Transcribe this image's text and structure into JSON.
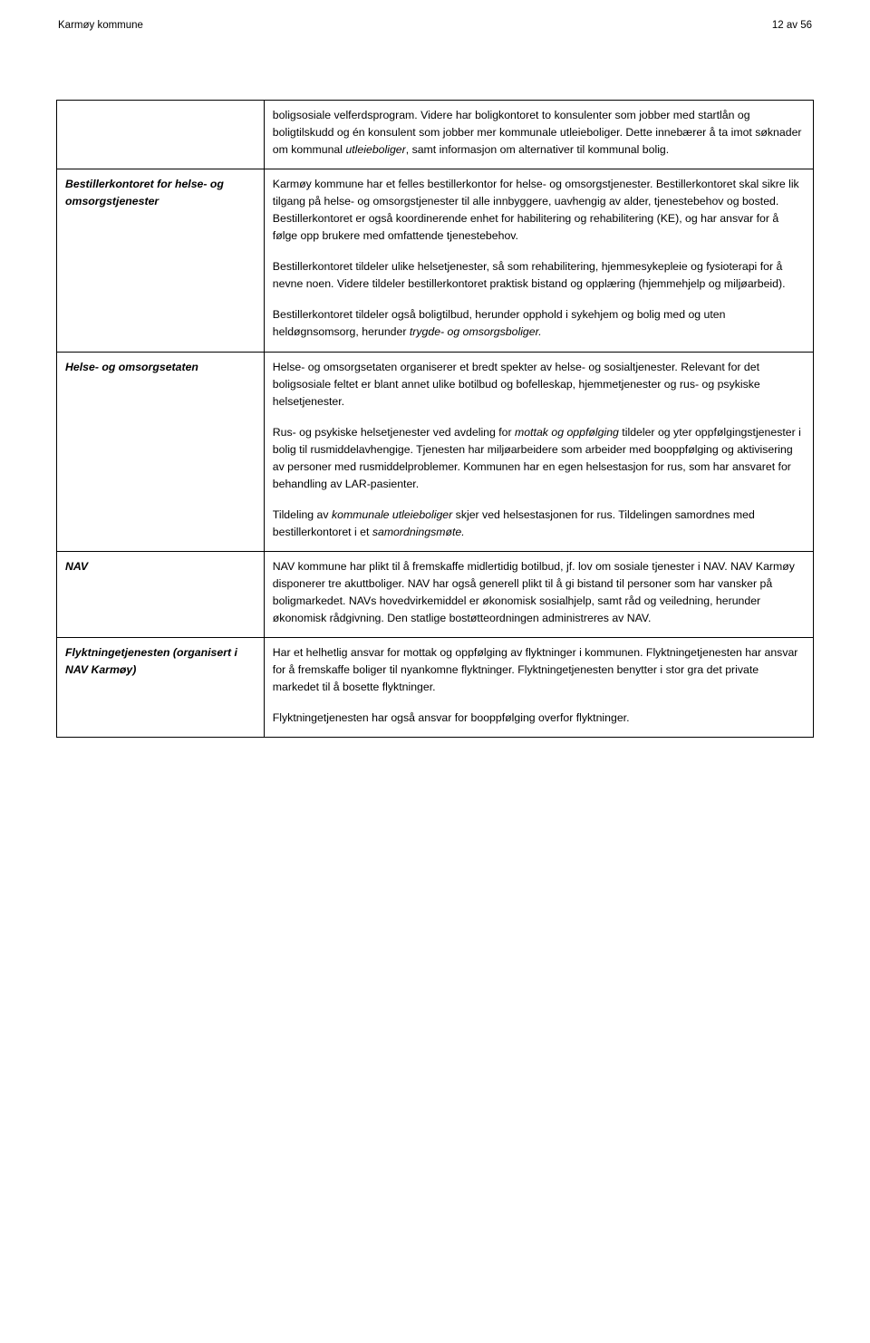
{
  "header": {
    "left": "Karmøy kommune",
    "right": "12 av 56"
  },
  "rows": [
    {
      "label": "",
      "paras": [
        {
          "html": "boligsosiale velferdsprogram. Videre har boligkontoret to konsulenter som jobber med startlån og boligtilskudd og én konsulent som jobber mer kommunale utleieboliger. Dette innebærer å ta imot søknader om kommunal <em class='soft'>utleieboliger</em>, samt informasjon om alternativer til kommunal bolig."
        }
      ]
    },
    {
      "label": "Bestillerkontoret for helse- og omsorgstjenester",
      "paras": [
        {
          "html": "Karmøy kommune har et felles bestillerkontor for helse- og omsorgstjenester. Bestillerkontoret skal sikre lik tilgang på helse- og omsorgstjenester til alle innbyggere, uavhengig av alder, tjenestebehov og bosted. Bestillerkontoret er også koordinerende enhet for habilitering og rehabilitering (KE), og har ansvar for å følge opp brukere med omfattende tjenestebehov."
        },
        {
          "html": "Bestillerkontoret tildeler ulike helsetjenester, så som rehabilitering, hjemmesykepleie og fysioterapi for å nevne noen. Videre tildeler bestillerkontoret praktisk bistand og opplæring (hjemmehjelp og miljøarbeid)."
        },
        {
          "html": "Bestillerkontoret tildeler også boligtilbud, herunder opphold i sykehjem og bolig med og uten heldøgnsomsorg, herunder <em class='soft'>trygde- og omsorgsboliger.</em>"
        }
      ]
    },
    {
      "label": "Helse- og omsorgsetaten",
      "paras": [
        {
          "html": "Helse- og omsorgsetaten organiserer et bredt spekter av helse- og sosialtjenester. Relevant for det boligsosiale feltet er blant annet ulike botilbud og bofelleskap, hjemmetjenester og rus- og psykiske helsetjenester."
        },
        {
          "html": "Rus- og psykiske helsetjenester ved avdeling for <em class='soft'>mottak og oppfølging</em> tildeler og yter oppfølgingstjenester i bolig til rusmiddelavhengige. Tjenesten har miljøarbeidere som arbeider med booppfølging og aktivisering av personer med rusmiddelproblemer. Kommunen har en egen helsestasjon for rus, som har ansvaret for behandling av LAR-pasienter."
        },
        {
          "html": "Tildeling av <em class='soft'>kommunale utleieboliger</em> skjer ved helsestasjonen for rus. Tildelingen samordnes med bestillerkontoret i et <em class='soft'>samordningsmøte.</em>"
        }
      ]
    },
    {
      "label": "NAV",
      "paras": [
        {
          "html": "NAV kommune har plikt til å fremskaffe midlertidig botilbud, jf. lov om sosiale tjenester i NAV. NAV Karmøy disponerer tre akuttboliger. NAV har også generell plikt til å gi bistand til personer som har vansker på boligmarkedet. NAVs hovedvirkemiddel er økonomisk sosialhjelp, samt råd og veiledning, herunder økonomisk rådgivning. Den statlige bostøtteordningen administreres av NAV."
        }
      ]
    },
    {
      "label": "Flyktningetjenesten (organisert i NAV Karmøy)",
      "paras": [
        {
          "html": "Har et helhetlig ansvar for mottak og oppfølging av flyktninger i kommunen. Flyktningetjenesten har ansvar for å fremskaffe boliger til nyankomne flyktninger. Flyktningetjenesten benytter i stor gra det private markedet til å bosette flyktninger."
        },
        {
          "html": "Flyktningetjenesten har også ansvar for booppfølging overfor flyktninger."
        }
      ]
    }
  ]
}
